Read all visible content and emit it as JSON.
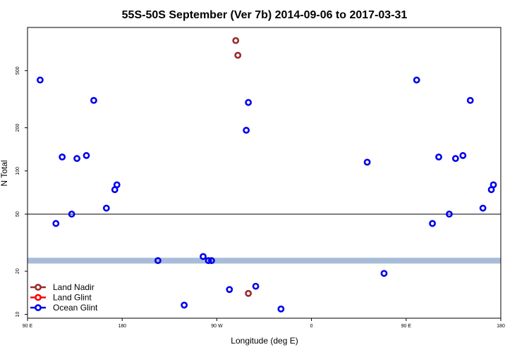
{
  "chart_data": {
    "type": "scatter",
    "title": "55S-50S September (Ver 7b)   2014-09-06 to 2017-03-31",
    "xlabel": "Longitude (deg E)",
    "ylabel": "N Total",
    "x_axis": {
      "range_deg_east": [
        90,
        540
      ],
      "ticks": [
        {
          "value": 90,
          "label": "90 E"
        },
        {
          "value": 180,
          "label": "180"
        },
        {
          "value": 270,
          "label": "90 W"
        },
        {
          "value": 360,
          "label": "0"
        },
        {
          "value": 450,
          "label": "90 E"
        },
        {
          "value": 540,
          "label": "180"
        }
      ]
    },
    "y_axis": {
      "scale": "log",
      "range": [
        9.4,
        1000
      ],
      "ticks": [
        {
          "value": 10,
          "label": "10"
        },
        {
          "value": 20,
          "label": "20"
        },
        {
          "value": 50,
          "label": "50"
        },
        {
          "value": 100,
          "label": "100"
        },
        {
          "value": 200,
          "label": "200"
        },
        {
          "value": 500,
          "label": "500"
        }
      ]
    },
    "reference_line": 50,
    "band": {
      "y_min": 22.6,
      "y_max": 24.8,
      "color": "#a8bcd8"
    },
    "grid": false,
    "legend_position": "bottom-left",
    "series": [
      {
        "name": "Land Nadir",
        "color": "#9b2a2a",
        "points": [
          [
            288,
            810
          ],
          [
            290,
            640
          ],
          [
            300,
            14
          ]
        ]
      },
      {
        "name": "Land Glint",
        "color": "#ff0000",
        "points": []
      },
      {
        "name": "Ocean Glint",
        "color": "#0000ee",
        "points": [
          [
            102,
            430
          ],
          [
            117,
            43
          ],
          [
            123,
            125
          ],
          [
            132,
            50
          ],
          [
            137,
            122
          ],
          [
            146,
            128
          ],
          [
            153,
            310
          ],
          [
            165,
            55
          ],
          [
            173,
            74
          ],
          [
            175,
            80
          ],
          [
            214,
            23.7
          ],
          [
            239,
            11.6
          ],
          [
            257,
            25.3
          ],
          [
            262,
            23.7
          ],
          [
            265,
            23.7
          ],
          [
            282,
            14.9
          ],
          [
            298,
            192
          ],
          [
            300,
            300
          ],
          [
            307,
            15.7
          ],
          [
            331,
            10.9
          ],
          [
            413,
            115
          ],
          [
            429,
            19.3
          ],
          [
            460,
            430
          ],
          [
            475,
            43
          ],
          [
            481,
            125
          ],
          [
            491,
            50
          ],
          [
            497,
            122
          ],
          [
            504,
            128
          ],
          [
            511,
            310
          ],
          [
            523,
            55
          ],
          [
            531,
            74
          ],
          [
            533,
            80
          ]
        ]
      }
    ]
  }
}
